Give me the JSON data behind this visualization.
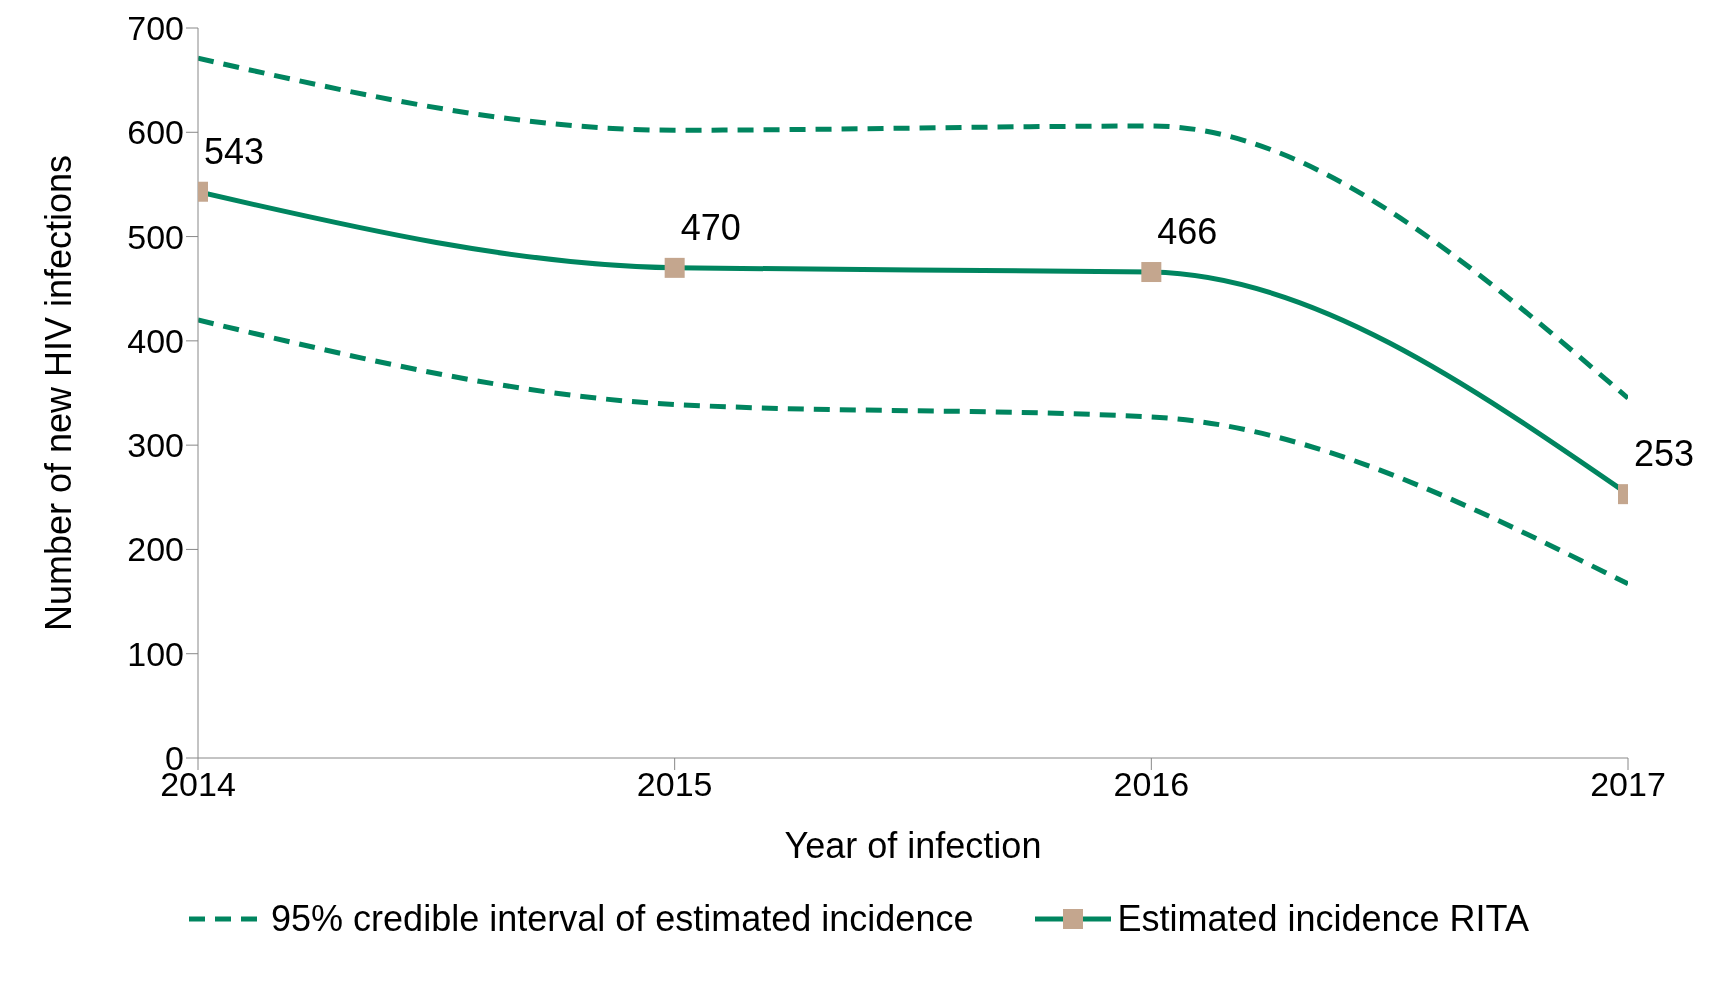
{
  "chart_data": {
    "type": "line",
    "xlabel": "Year of infection",
    "ylabel": "Number of new HIV infections",
    "categories": [
      "2014",
      "2015",
      "2016",
      "2017"
    ],
    "ylim": [
      0,
      700
    ],
    "yticks": [
      0,
      100,
      200,
      300,
      400,
      500,
      600,
      700
    ],
    "grid": false,
    "legend": "bottom",
    "series": [
      {
        "name": "95% credible interval of estimated incidence",
        "color": "#00855f",
        "line_style": "dashed",
        "marker": "none",
        "values": [
          671,
          602,
          606,
          345
        ]
      },
      {
        "color": "#00855f",
        "line_style": "dashed",
        "marker": "none",
        "values": [
          420,
          339,
          327,
          167
        ]
      },
      {
        "name": "Estimated incidence RITA",
        "color": "#00855f",
        "line_style": "solid",
        "marker": "square",
        "colors": [
          "#c4a68e",
          "#c4a68e",
          "#c4a68e",
          "#c4a68e"
        ],
        "values": [
          543,
          470,
          466,
          253
        ],
        "value_labels": [
          "543",
          "470",
          "466",
          "253"
        ]
      }
    ]
  }
}
